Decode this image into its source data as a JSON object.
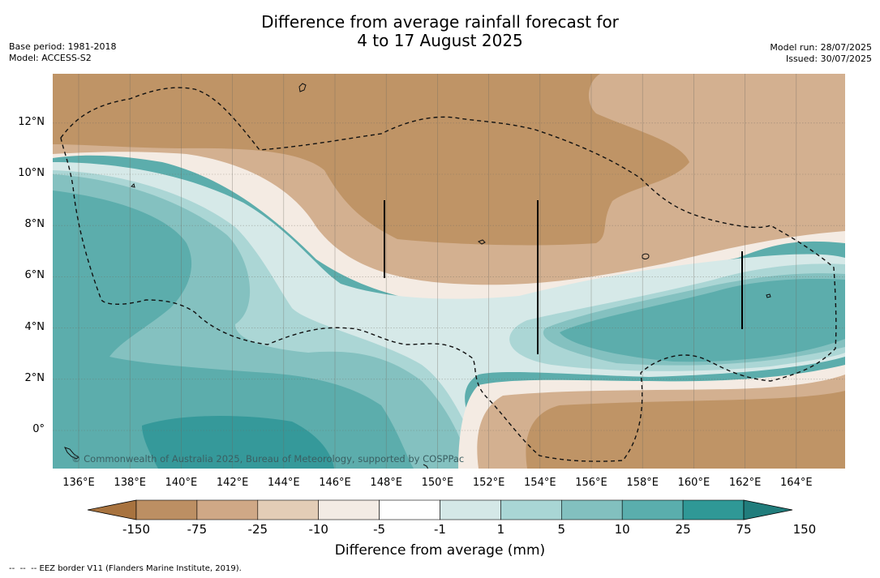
{
  "title_line1": "Difference from average rainfall forecast for",
  "title_line2": "4 to 17 August 2025",
  "base_period": "Base period: 1981-2018",
  "model": "Model: ACCESS-S2",
  "model_run": "Model run: 28/07/2025",
  "issued": "Issued: 30/07/2025",
  "copyright": "© Commonwealth of Australia 2025, Bureau of Meteorology, supported by COSPPac",
  "footer": "--  --  -- EEZ border V11 (Flanders Marine Institute, 2019).",
  "axes": {
    "lat_labels": [
      "12°N",
      "10°N",
      "8°N",
      "6°N",
      "4°N",
      "2°N",
      "0°"
    ],
    "lon_labels": [
      "136°E",
      "138°E",
      "140°E",
      "142°E",
      "144°E",
      "146°E",
      "148°E",
      "150°E",
      "152°E",
      "154°E",
      "156°E",
      "158°E",
      "160°E",
      "162°E",
      "164°E"
    ]
  },
  "colorbar": {
    "title": "Difference from average (mm)",
    "labels": [
      "-150",
      "-75",
      "-25",
      "-10",
      "-5",
      "-1",
      "1",
      "5",
      "10",
      "25",
      "75",
      "150"
    ],
    "colors": [
      "#a8733f",
      "#bc8f63",
      "#cfa886",
      "#e3cdb6",
      "#f3ebe4",
      "#ffffff",
      "#d4e8e7",
      "#a9d6d5",
      "#82c0bf",
      "#5aaead",
      "#2f9896",
      "#217d7c"
    ]
  },
  "map_colors": {
    "dry_strong": "#bf9466",
    "dry_mid": "#d3b090",
    "dry_light": "#e6d1bd",
    "dry_faint": "#f4ebe3",
    "neutral": "#ffffff",
    "wet_faint": "#d6e9e8",
    "wet_light": "#abd6d5",
    "wet_mid": "#84c1c0",
    "wet_strong": "#5cadac",
    "wet_max": "#35999a"
  }
}
